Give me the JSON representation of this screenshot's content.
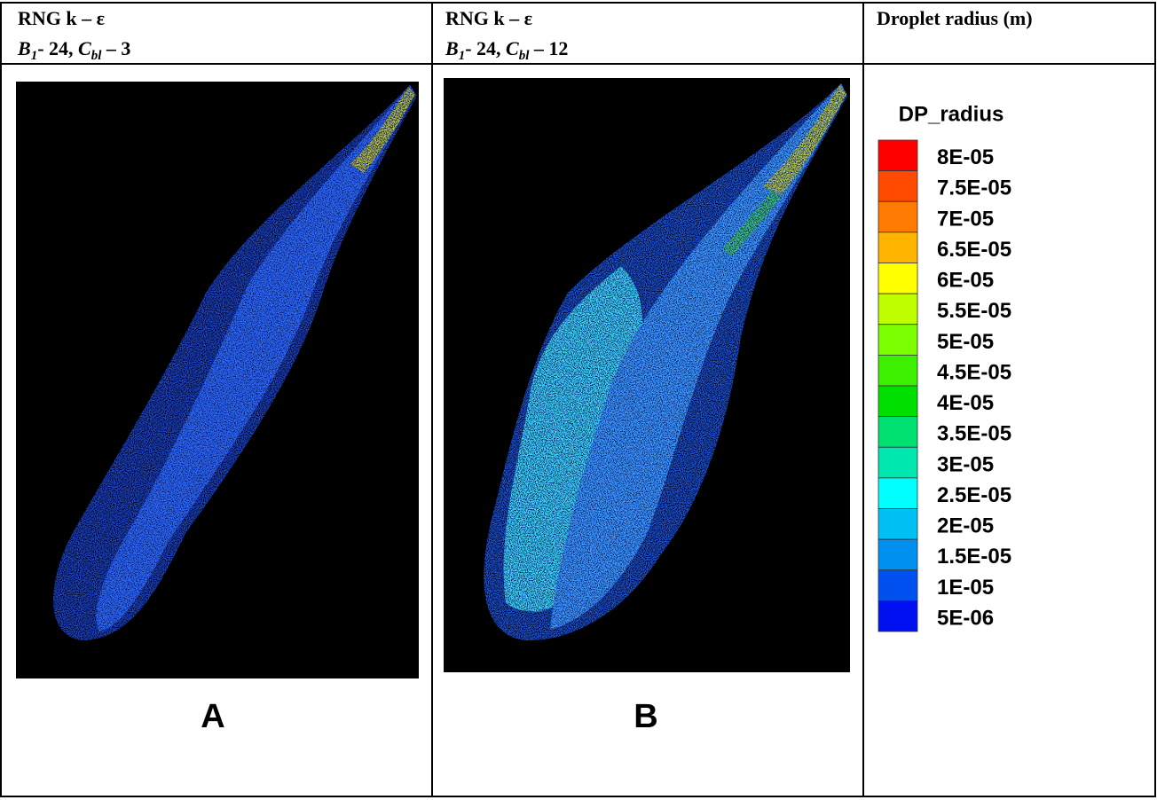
{
  "panel_a": {
    "header": {
      "line1": "RNG k – ε",
      "symbol1": "B",
      "sub1": "1",
      "text1": "- 24,",
      "symbol2": "C",
      "sub2": "bl",
      "text2": "– 3"
    },
    "label": "A"
  },
  "panel_b": {
    "header": {
      "line1": "RNG k – ε",
      "symbol1": "B",
      "sub1": "1",
      "text1": "- 24,",
      "symbol2": "C",
      "sub2": "bl",
      "text2": "– 12"
    },
    "label": "B"
  },
  "legend": {
    "header": "Droplet radius (m)",
    "title": "DP_radius",
    "labels": [
      "8E-05",
      "7.5E-05",
      "7E-05",
      "6.5E-05",
      "6E-05",
      "5.5E-05",
      "5E-05",
      "4.5E-05",
      "4E-05",
      "3.5E-05",
      "3E-05",
      "2.5E-05",
      "2E-05",
      "1.5E-05",
      "1E-05",
      "5E-06"
    ]
  }
}
